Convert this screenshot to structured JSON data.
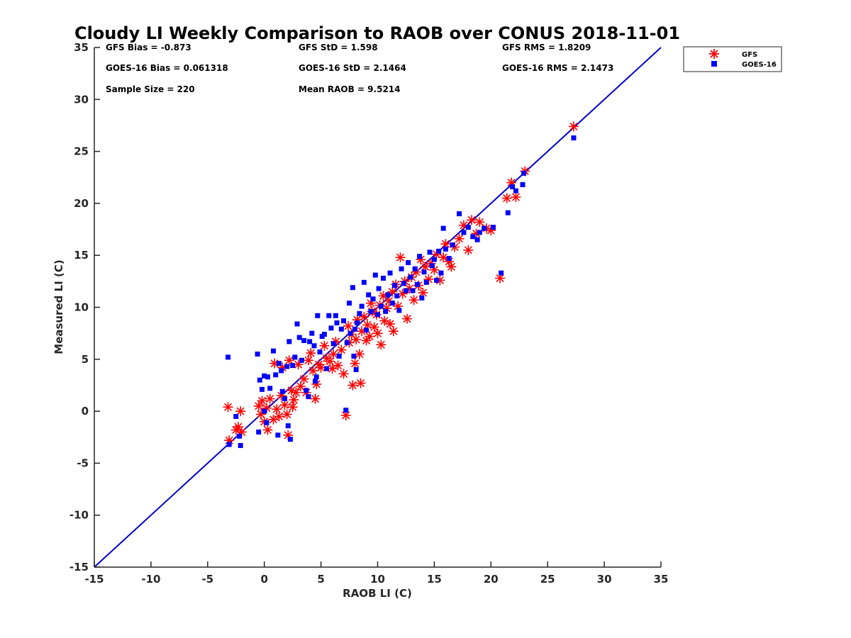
{
  "chart_data": {
    "type": "scatter",
    "title": "Cloudy LI Weekly Comparison to RAOB over CONUS 2018-11-01",
    "xlabel": "RAOB LI (C)",
    "ylabel": "Measured LI (C)",
    "xlim": [
      -15,
      35
    ],
    "ylim": [
      -15,
      35
    ],
    "xticks": [
      "-15",
      "-10",
      "-5",
      "0",
      "5",
      "10",
      "15",
      "20",
      "25",
      "30",
      "35"
    ],
    "yticks": [
      "-15",
      "-10",
      "-5",
      "0",
      "5",
      "10",
      "15",
      "20",
      "25",
      "30",
      "35"
    ],
    "grid": false,
    "legend_position": "outside-top-right",
    "one_to_one_line": [
      [
        -15,
        -15
      ],
      [
        35,
        35
      ]
    ],
    "stats": {
      "gfs_bias": "GFS Bias = -0.873",
      "gfs_std": "GFS StD = 1.598",
      "gfs_rms": "GFS RMS = 1.8209",
      "goes_bias": "GOES-16 Bias = 0.061318",
      "goes_std": "GOES-16 StD = 2.1464",
      "goes_rms": "GOES-16 RMS = 2.1473",
      "sample_size": "Sample Size = 220",
      "mean_raob": "Mean RAOB = 9.5214"
    },
    "series": [
      {
        "name": "GFS",
        "marker": "asterisk",
        "color": "#ff0000",
        "points": [
          [
            -3.2,
            0.4
          ],
          [
            -3.1,
            -2.8
          ],
          [
            -2.5,
            -1.8
          ],
          [
            -2.3,
            -1.5
          ],
          [
            -2.1,
            0
          ],
          [
            -2,
            -2
          ],
          [
            -0.5,
            0.5
          ],
          [
            -0.3,
            -0.3
          ],
          [
            -0.2,
            1
          ],
          [
            0,
            -1
          ],
          [
            0.2,
            0.3
          ],
          [
            0.3,
            -1.8
          ],
          [
            0.5,
            1.2
          ],
          [
            0.8,
            -0.8
          ],
          [
            0.9,
            4.6
          ],
          [
            1.1,
            0.2
          ],
          [
            1.3,
            -0.5
          ],
          [
            1.5,
            1.5
          ],
          [
            1.6,
            4.2
          ],
          [
            1.8,
            0.6
          ],
          [
            2,
            -0.3
          ],
          [
            2.1,
            -2.3
          ],
          [
            2.2,
            4.9
          ],
          [
            2.4,
            2
          ],
          [
            2.5,
            0.4
          ],
          [
            2.6,
            1.1
          ],
          [
            2.8,
            1.8
          ],
          [
            3,
            4.5
          ],
          [
            3.2,
            2.4
          ],
          [
            3.5,
            3.1
          ],
          [
            3.7,
            1.8
          ],
          [
            3.9,
            4.9
          ],
          [
            4.1,
            5.6
          ],
          [
            4.3,
            3.9
          ],
          [
            4.5,
            1.2
          ],
          [
            4.6,
            2.6
          ],
          [
            4.8,
            4.5
          ],
          [
            5,
            4.2
          ],
          [
            5.3,
            6.3
          ],
          [
            5.5,
            5.1
          ],
          [
            5.8,
            4.8
          ],
          [
            6,
            4.1
          ],
          [
            6.1,
            5.5
          ],
          [
            6.3,
            6.7
          ],
          [
            6.5,
            4.4
          ],
          [
            6.8,
            5.9
          ],
          [
            7,
            3.6
          ],
          [
            7.2,
            -0.4
          ],
          [
            7.4,
            8.2
          ],
          [
            7.5,
            6.6
          ],
          [
            7.7,
            7.4
          ],
          [
            7.8,
            2.5
          ],
          [
            8,
            4.6
          ],
          [
            8.1,
            6.9
          ],
          [
            8.2,
            8.8
          ],
          [
            8.4,
            5.5
          ],
          [
            8.5,
            2.7
          ],
          [
            8.6,
            7.7
          ],
          [
            8.8,
            9.1
          ],
          [
            9,
            6.8
          ],
          [
            9.1,
            8.3
          ],
          [
            9.3,
            7.2
          ],
          [
            9.4,
            10.4
          ],
          [
            9.5,
            9.6
          ],
          [
            9.7,
            8.1
          ],
          [
            9.9,
            9.3
          ],
          [
            10,
            7.5
          ],
          [
            10.2,
            10.2
          ],
          [
            10.3,
            6.4
          ],
          [
            10.5,
            11.1
          ],
          [
            10.6,
            8.7
          ],
          [
            10.8,
            9.9
          ],
          [
            11,
            10.6
          ],
          [
            11.1,
            8.4
          ],
          [
            11.3,
            11.5
          ],
          [
            11.4,
            7.7
          ],
          [
            11.6,
            12.2
          ],
          [
            11.8,
            10.1
          ],
          [
            12,
            14.8
          ],
          [
            12.2,
            11.3
          ],
          [
            12.4,
            12.5
          ],
          [
            12.6,
            8.9
          ],
          [
            12.8,
            11.8
          ],
          [
            13,
            12.9
          ],
          [
            13.2,
            10.7
          ],
          [
            13.4,
            13.4
          ],
          [
            13.6,
            12.1
          ],
          [
            13.8,
            14.6
          ],
          [
            14,
            11.4
          ],
          [
            14.2,
            13.9
          ],
          [
            14.5,
            12.7
          ],
          [
            14.7,
            14.2
          ],
          [
            15,
            13.6
          ],
          [
            15.2,
            15.1
          ],
          [
            15.5,
            12.6
          ],
          [
            15.8,
            14.8
          ],
          [
            16,
            16.1
          ],
          [
            16.3,
            14.4
          ],
          [
            16.5,
            13.9
          ],
          [
            16.8,
            15.8
          ],
          [
            17.2,
            16.6
          ],
          [
            17.6,
            17.9
          ],
          [
            18,
            15.5
          ],
          [
            18.3,
            18.4
          ],
          [
            18.7,
            17.1
          ],
          [
            19,
            18.2
          ],
          [
            19.6,
            17.6
          ],
          [
            20,
            17.4
          ],
          [
            20.8,
            12.8
          ],
          [
            21.4,
            20.5
          ],
          [
            21.8,
            22
          ],
          [
            22.2,
            20.6
          ],
          [
            23,
            23.1
          ],
          [
            27.3,
            27.4
          ]
        ]
      },
      {
        "name": "GOES-16",
        "marker": "square",
        "color": "#0000ff",
        "points": [
          [
            -3.2,
            5.2
          ],
          [
            -3.1,
            -3.2
          ],
          [
            -2.5,
            -0.5
          ],
          [
            -2.2,
            -2.4
          ],
          [
            -2.1,
            -3.3
          ],
          [
            -0.6,
            5.5
          ],
          [
            -0.5,
            -2
          ],
          [
            -0.4,
            3
          ],
          [
            -0.2,
            2.1
          ],
          [
            0,
            3.4
          ],
          [
            0,
            0
          ],
          [
            0.2,
            -1.1
          ],
          [
            0.3,
            3.3
          ],
          [
            0.5,
            2.2
          ],
          [
            0.8,
            5.8
          ],
          [
            1,
            3.5
          ],
          [
            1.2,
            -2.3
          ],
          [
            1.3,
            4.6
          ],
          [
            1.5,
            3.9
          ],
          [
            1.6,
            1.9
          ],
          [
            1.8,
            1.2
          ],
          [
            2,
            4.3
          ],
          [
            2.1,
            -1.4
          ],
          [
            2.2,
            6.7
          ],
          [
            2.3,
            -2.7
          ],
          [
            2.5,
            4.4
          ],
          [
            2.7,
            5.2
          ],
          [
            2.9,
            8.4
          ],
          [
            3.1,
            7.1
          ],
          [
            3.3,
            4.9
          ],
          [
            3.5,
            6.8
          ],
          [
            3.7,
            2
          ],
          [
            3.9,
            1.4
          ],
          [
            4,
            6.7
          ],
          [
            4.2,
            7.5
          ],
          [
            4.4,
            6.3
          ],
          [
            4.5,
            2.9
          ],
          [
            4.6,
            3.3
          ],
          [
            4.7,
            9.2
          ],
          [
            4.9,
            5.7
          ],
          [
            5.1,
            7.2
          ],
          [
            5.3,
            7.4
          ],
          [
            5.5,
            4.1
          ],
          [
            5.7,
            9.2
          ],
          [
            5.9,
            8
          ],
          [
            6.1,
            6.5
          ],
          [
            6.3,
            9.2
          ],
          [
            6.4,
            8.5
          ],
          [
            6.6,
            5.3
          ],
          [
            6.8,
            7.9
          ],
          [
            7,
            8.7
          ],
          [
            7.2,
            0.1
          ],
          [
            7.3,
            6.6
          ],
          [
            7.5,
            10.4
          ],
          [
            7.6,
            7.5
          ],
          [
            7.8,
            11.9
          ],
          [
            7.9,
            5.3
          ],
          [
            8,
            7.9
          ],
          [
            8.1,
            4
          ],
          [
            8.2,
            8.5
          ],
          [
            8.4,
            9.4
          ],
          [
            8.6,
            10.1
          ],
          [
            8.8,
            12.4
          ],
          [
            9,
            7.8
          ],
          [
            9.2,
            11.2
          ],
          [
            9.4,
            9.6
          ],
          [
            9.6,
            10.8
          ],
          [
            9.8,
            13.1
          ],
          [
            10,
            9.3
          ],
          [
            10.1,
            11.8
          ],
          [
            10.3,
            10.1
          ],
          [
            10.5,
            12.8
          ],
          [
            10.7,
            9.6
          ],
          [
            10.9,
            11.2
          ],
          [
            11.1,
            13.3
          ],
          [
            11.3,
            10.4
          ],
          [
            11.5,
            12.1
          ],
          [
            11.7,
            11.1
          ],
          [
            11.9,
            9.7
          ],
          [
            12.1,
            13.7
          ],
          [
            12.3,
            12.3
          ],
          [
            12.5,
            11.6
          ],
          [
            12.7,
            14.3
          ],
          [
            12.9,
            12.9
          ],
          [
            13.1,
            11.6
          ],
          [
            13.3,
            13.7
          ],
          [
            13.5,
            12.2
          ],
          [
            13.7,
            14.9
          ],
          [
            13.9,
            10.9
          ],
          [
            14.1,
            13.4
          ],
          [
            14.3,
            12.4
          ],
          [
            14.6,
            15.3
          ],
          [
            14.8,
            14
          ],
          [
            15,
            14.6
          ],
          [
            15.2,
            12.6
          ],
          [
            15.4,
            15.4
          ],
          [
            15.6,
            13.3
          ],
          [
            15.8,
            17.6
          ],
          [
            16,
            15.6
          ],
          [
            16.3,
            14.7
          ],
          [
            16.6,
            16
          ],
          [
            17.2,
            19
          ],
          [
            17.6,
            17.2
          ],
          [
            18,
            17.7
          ],
          [
            18.4,
            16.8
          ],
          [
            18.8,
            16.5
          ],
          [
            19,
            17.2
          ],
          [
            19.4,
            17.6
          ],
          [
            20.2,
            17.7
          ],
          [
            20.9,
            13.3
          ],
          [
            21.5,
            19.1
          ],
          [
            21.9,
            21.6
          ],
          [
            22.2,
            21.2
          ],
          [
            22.8,
            21.8
          ],
          [
            22.9,
            22.9
          ],
          [
            27.3,
            26.3
          ]
        ]
      }
    ]
  }
}
